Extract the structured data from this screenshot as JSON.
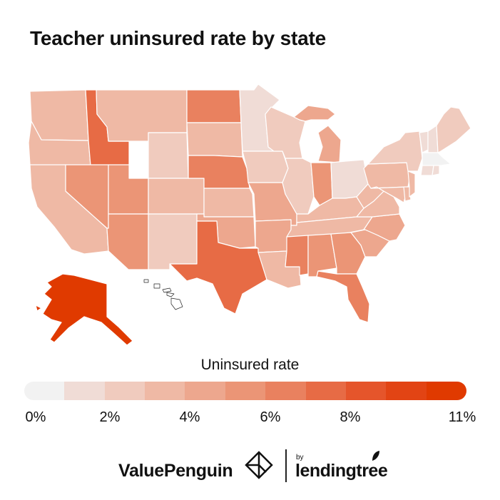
{
  "title": "Teacher uninsured rate by state",
  "legend": {
    "title": "Uninsured rate",
    "ticks": [
      "0%",
      "2%",
      "4%",
      "6%",
      "8%",
      "11%"
    ],
    "colors": [
      "#f2f2f2",
      "#f0dcd6",
      "#f0cbbe",
      "#efb9a5",
      "#eda78e",
      "#eb9576",
      "#e9815f",
      "#e76b45",
      "#e5552b",
      "#e24414",
      "#e03a00"
    ]
  },
  "states": {
    "WA": "#efb9a5",
    "OR": "#efb9a5",
    "CA": "#efb9a5",
    "ID": "#e76b45",
    "NV": "#eb9576",
    "MT": "#efb9a5",
    "WY": "#f0cbbe",
    "UT": "#eb9576",
    "AZ": "#eb9576",
    "CO": "#efb9a5",
    "NM": "#f0cbbe",
    "ND": "#e9815f",
    "SD": "#efb9a5",
    "NE": "#e9815f",
    "KS": "#efb9a5",
    "OK": "#eda78e",
    "TX": "#e76b45",
    "MN": "#f0dcd6",
    "IA": "#f0cbbe",
    "MO": "#eda78e",
    "AR": "#eda78e",
    "LA": "#efb9a5",
    "WI": "#f0cbbe",
    "IL": "#f0cbbe",
    "MI": "#eda78e",
    "IN": "#eb9576",
    "OH": "#f0dcd6",
    "KY": "#efb9a5",
    "TN": "#efb9a5",
    "MS": "#e9815f",
    "AL": "#eb9576",
    "GA": "#eb9576",
    "FL": "#e9815f",
    "SC": "#eda78e",
    "NC": "#eda78e",
    "VA": "#efb9a5",
    "WV": "#efb9a5",
    "PA": "#efb9a5",
    "NY": "#f0cbbe",
    "ME": "#f0cbbe",
    "VT": "#f0dcd6",
    "NH": "#f0dcd6",
    "MA": "#f2f2f2",
    "RI": "#f0dcd6",
    "CT": "#f0dcd6",
    "NJ": "#efb9a5",
    "DE": "#efb9a5",
    "MD": "#efb9a5",
    "AK": "#e03a00",
    "HI": "#ffffff"
  },
  "footer": {
    "brand": "ValuePenguin",
    "by": "by",
    "partner": "lendingtree"
  }
}
